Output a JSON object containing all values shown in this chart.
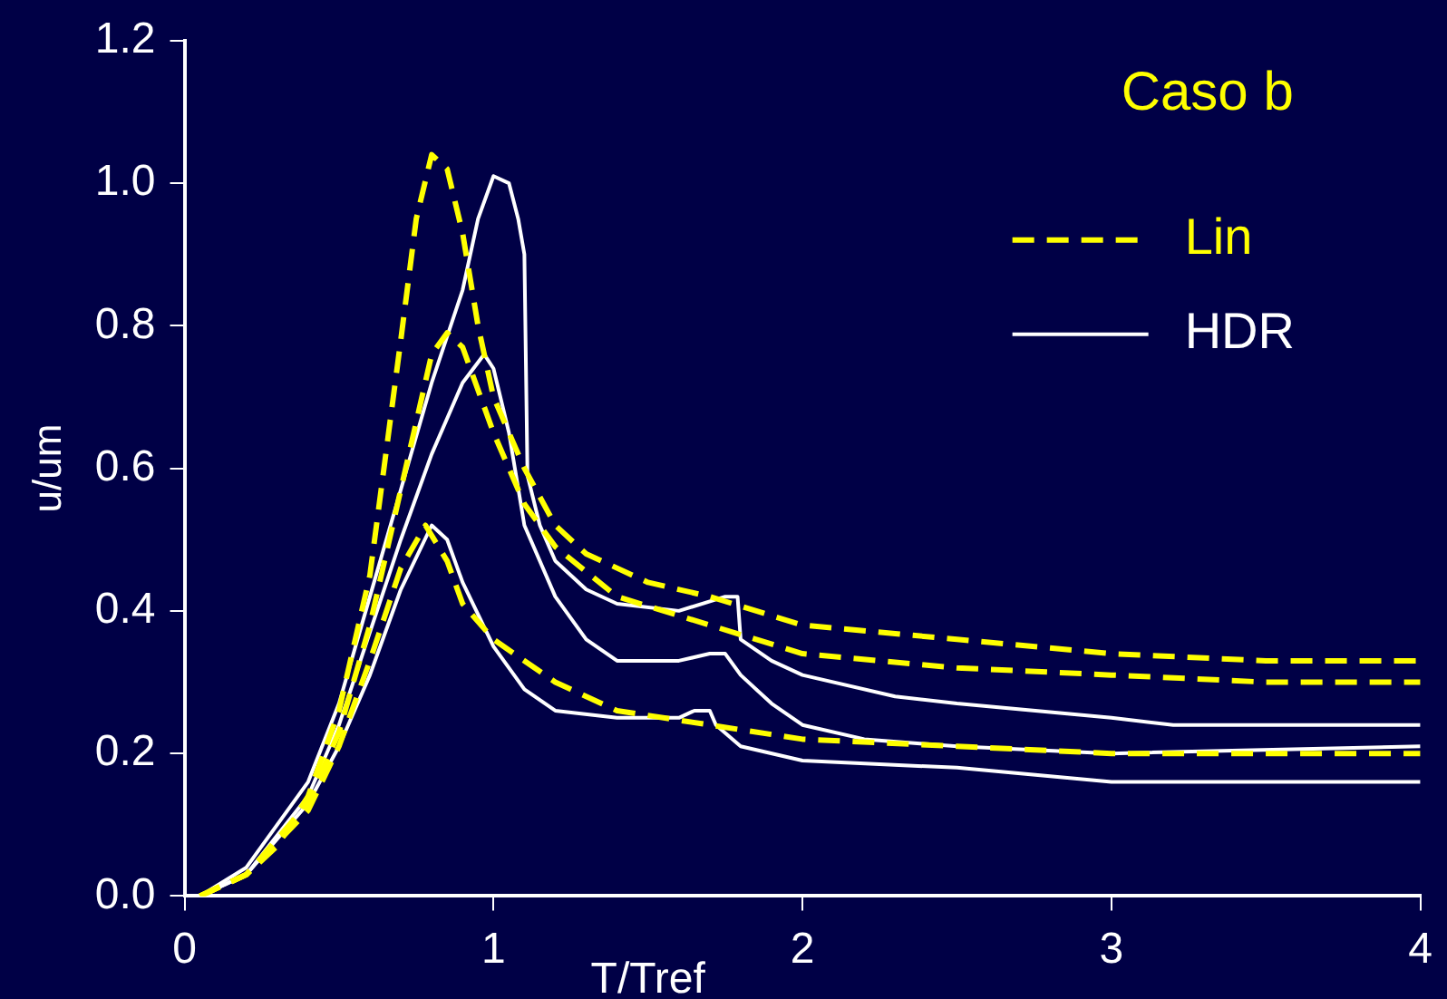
{
  "chart_data": {
    "type": "line",
    "xlabel": "T/Tref",
    "ylabel": "u/um",
    "legend_title": "Caso b",
    "xlim": [
      0,
      4
    ],
    "xticks": [
      0,
      1,
      2,
      3,
      4
    ],
    "ylim": [
      0,
      1.2
    ],
    "yticks": [
      {
        "value": 0,
        "label": "0.0"
      },
      {
        "value": 0.2,
        "label": "0.2"
      },
      {
        "value": 0.4,
        "label": "0.4"
      },
      {
        "value": 0.6,
        "label": "0.6"
      },
      {
        "value": 0.8,
        "label": "0.8"
      },
      {
        "value": 1,
        "label": "1.0"
      },
      {
        "value": 1.2,
        "label": "1.2"
      }
    ],
    "grid": false,
    "legend": "top right",
    "marker": "none",
    "series": [
      {
        "name": "Lin",
        "color": "#ffff00",
        "line_style": "dashed",
        "x": [
          0.05,
          0.2,
          0.3,
          0.4,
          0.5,
          0.6,
          0.7,
          0.75,
          0.8,
          0.85,
          0.9,
          0.95,
          1.0,
          1.1,
          1.2,
          1.3,
          1.5,
          1.7,
          2.0,
          2.5,
          3.0,
          3.5,
          4.0
        ],
        "values": [
          0,
          0.03,
          0.07,
          0.14,
          0.26,
          0.45,
          0.78,
          0.95,
          1.04,
          1.02,
          0.93,
          0.8,
          0.7,
          0.6,
          0.52,
          0.48,
          0.44,
          0.42,
          0.38,
          0.36,
          0.34,
          0.33,
          0.33
        ]
      },
      {
        "color": "#ffff00",
        "line_style": "dashed",
        "x": [
          0.05,
          0.2,
          0.4,
          0.5,
          0.6,
          0.7,
          0.8,
          0.85,
          0.9,
          1.0,
          1.1,
          1.2,
          1.4,
          1.7,
          2.0,
          2.5,
          3.0,
          3.5,
          4.0
        ],
        "values": [
          0,
          0.03,
          0.13,
          0.23,
          0.38,
          0.57,
          0.76,
          0.79,
          0.77,
          0.65,
          0.55,
          0.49,
          0.42,
          0.38,
          0.34,
          0.32,
          0.31,
          0.3,
          0.3
        ]
      },
      {
        "color": "#ffff00",
        "line_style": "dashed",
        "x": [
          0.05,
          0.2,
          0.4,
          0.5,
          0.6,
          0.7,
          0.78,
          0.85,
          0.9,
          1.0,
          1.2,
          1.4,
          1.7,
          2.0,
          2.5,
          3.0,
          4.0
        ],
        "values": [
          0,
          0.03,
          0.12,
          0.21,
          0.33,
          0.46,
          0.52,
          0.47,
          0.41,
          0.36,
          0.3,
          0.26,
          0.24,
          0.22,
          0.21,
          0.2,
          0.2
        ]
      },
      {
        "name": "HDR",
        "color": "#ffffff",
        "line_style": "solid",
        "x": [
          0.05,
          0.2,
          0.4,
          0.5,
          0.6,
          0.7,
          0.8,
          0.9,
          0.95,
          1.0,
          1.05,
          1.08,
          1.1,
          1.11,
          1.15,
          1.2,
          1.3,
          1.4,
          1.6,
          1.75,
          1.79,
          1.8,
          1.9,
          2.0,
          2.3,
          2.5,
          3.0,
          3.2,
          3.5,
          4.0
        ],
        "values": [
          0,
          0.04,
          0.16,
          0.27,
          0.42,
          0.57,
          0.72,
          0.85,
          0.95,
          1.01,
          1.0,
          0.95,
          0.9,
          0.59,
          0.52,
          0.47,
          0.43,
          0.41,
          0.4,
          0.42,
          0.42,
          0.36,
          0.33,
          0.31,
          0.28,
          0.27,
          0.25,
          0.24,
          0.24,
          0.24
        ]
      },
      {
        "color": "#ffffff",
        "line_style": "solid",
        "x": [
          0.05,
          0.2,
          0.4,
          0.5,
          0.6,
          0.7,
          0.8,
          0.9,
          0.97,
          1.0,
          1.05,
          1.1,
          1.2,
          1.3,
          1.4,
          1.6,
          1.7,
          1.75,
          1.8,
          1.9,
          2.0,
          2.2,
          2.5,
          3.0,
          4.0
        ],
        "values": [
          0,
          0.03,
          0.14,
          0.24,
          0.37,
          0.5,
          0.62,
          0.72,
          0.76,
          0.74,
          0.65,
          0.52,
          0.42,
          0.36,
          0.33,
          0.33,
          0.34,
          0.34,
          0.31,
          0.27,
          0.24,
          0.22,
          0.21,
          0.2,
          0.21
        ]
      },
      {
        "color": "#ffffff",
        "line_style": "solid",
        "x": [
          0.05,
          0.2,
          0.4,
          0.5,
          0.6,
          0.7,
          0.8,
          0.85,
          0.9,
          1.0,
          1.1,
          1.2,
          1.4,
          1.6,
          1.65,
          1.7,
          1.72,
          1.8,
          2.0,
          2.5,
          3.0,
          3.5,
          4.0
        ],
        "values": [
          0,
          0.03,
          0.13,
          0.21,
          0.31,
          0.43,
          0.52,
          0.5,
          0.44,
          0.35,
          0.29,
          0.26,
          0.25,
          0.25,
          0.26,
          0.26,
          0.24,
          0.21,
          0.19,
          0.18,
          0.16,
          0.16,
          0.16
        ]
      }
    ]
  }
}
